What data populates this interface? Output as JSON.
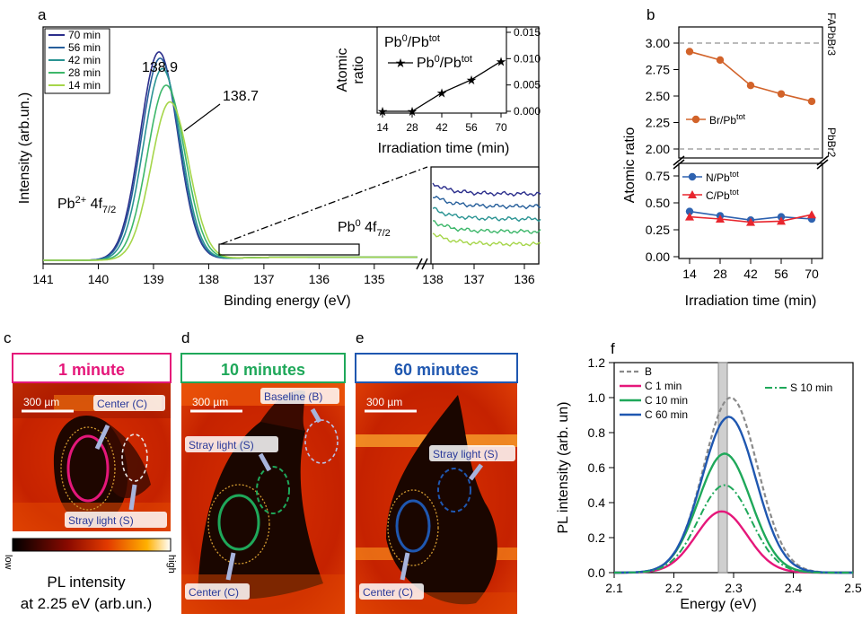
{
  "panel_labels": {
    "a": "a",
    "b": "b",
    "c": "c",
    "d": "d",
    "e": "e",
    "f": "f"
  },
  "colors": {
    "c70": "#2b2e8c",
    "c56": "#275f9b",
    "c42": "#2a9493",
    "c28": "#3db76a",
    "c14": "#a6d64a",
    "br": "#d2632a",
    "n": "#2e62b0",
    "cpb": "#e8262e",
    "B": "#8a8a8a",
    "C1": "#e5177a",
    "C10": "#1fa85a",
    "C60": "#1f57b0",
    "S10": "#1fa85a",
    "heat_dark": "#230800",
    "heat_mid": "#b02000",
    "heat_hot": "#ff6a10",
    "heat_bright": "#ffd24a"
  },
  "chart_data": [
    {
      "id": "a_main",
      "type": "line",
      "xlabel": "Binding energy (eV)",
      "ylabel": "Intensity (arb.un.)",
      "xlim": [
        141,
        134.2
      ],
      "x_ticks": [
        "141",
        "140",
        "139",
        "138",
        "137",
        "136",
        "135",
        "138"
      ],
      "legend": [
        "70 min",
        "56 min",
        "42 min",
        "28 min",
        "14 min"
      ],
      "series": [
        {
          "name": "70 min",
          "peak_center": 138.9,
          "peak_height": 1.0
        },
        {
          "name": "56 min",
          "peak_center": 138.88,
          "peak_height": 0.97
        },
        {
          "name": "42 min",
          "peak_center": 138.84,
          "peak_height": 0.92
        },
        {
          "name": "28 min",
          "peak_center": 138.77,
          "peak_height": 0.84
        },
        {
          "name": "14 min",
          "peak_center": 138.7,
          "peak_height": 0.76
        }
      ],
      "annotations": [
        "138.9",
        "138.7",
        "Pb2+ 4f7/2",
        "Pb0 4f7/2"
      ],
      "annotation_parts": {
        "pb2_base": "Pb",
        "pb2_sup": "2+",
        "pb2_rest": " 4f",
        "pb2_sub": "7/2",
        "pb0_base": "Pb",
        "pb0_sup": "0",
        "pb0_rest": " 4f",
        "pb0_sub": "7/2"
      },
      "zoom_x_ticks": [
        "137",
        "136"
      ]
    },
    {
      "id": "a_inset",
      "type": "line",
      "title": "Pb0/Pbtot",
      "xlabel": "Irradiation time (min)",
      "ylabel": "Atomic ratio",
      "ylabel_lines": [
        "Atomic",
        "ratio"
      ],
      "x": [
        14,
        28,
        42,
        56,
        70
      ],
      "values": [
        0.0,
        0.0,
        0.0035,
        0.006,
        0.0095
      ],
      "ylim": [
        0,
        0.015
      ],
      "y_ticks": [
        "0.000",
        "0.005",
        "0.010",
        "0.015"
      ],
      "legend": [
        "Pb0/Pbtot"
      ],
      "title_parts": {
        "base": "Pb",
        "sup": "0",
        "mid": "/Pb",
        "sup2": "tot"
      }
    },
    {
      "id": "b",
      "type": "line",
      "xlabel": "Irradiation time (min)",
      "ylabel": "Atomic ratio",
      "x": [
        14,
        28,
        42,
        56,
        70
      ],
      "series": [
        {
          "name": "Br/Pbtot",
          "values": [
            2.92,
            2.84,
            2.6,
            2.52,
            2.45
          ]
        },
        {
          "name": "N/Pbtot",
          "values": [
            0.42,
            0.38,
            0.34,
            0.37,
            0.35
          ]
        },
        {
          "name": "C/Pbtot",
          "values": [
            0.37,
            0.35,
            0.32,
            0.33,
            0.39
          ]
        }
      ],
      "legend_parts": {
        "br": "Br/Pb",
        "n": "N/Pb",
        "c": "C/Pb",
        "sup": "tot"
      },
      "upper_y_ticks": [
        "3.00",
        "2.75",
        "2.50",
        "2.25",
        "2.00"
      ],
      "lower_y_ticks": [
        "0.75",
        "0.50",
        "0.25",
        "0.00"
      ],
      "x_ticks": [
        "14",
        "28",
        "42",
        "56",
        "70"
      ],
      "reference_lines": {
        "top": "FAPbBr3",
        "bottom": "PbBr2"
      }
    },
    {
      "id": "f",
      "type": "line",
      "xlabel": "Energy (eV)",
      "ylabel": "PL intensity (arb. un)",
      "xlim": [
        2.1,
        2.5
      ],
      "ylim": [
        0,
        1.2
      ],
      "x_ticks": [
        "2.1",
        "2.2",
        "2.3",
        "2.4",
        "2.5"
      ],
      "y_ticks": [
        "0.0",
        "0.2",
        "0.4",
        "0.6",
        "0.8",
        "1.0",
        "1.2"
      ],
      "series": [
        {
          "name": "B",
          "center": 2.295,
          "amplitude": 1.0,
          "width": 0.045
        },
        {
          "name": "C 1 min",
          "center": 2.28,
          "amplitude": 0.35,
          "width": 0.043
        },
        {
          "name": "C 10 min",
          "center": 2.285,
          "amplitude": 0.68,
          "width": 0.044
        },
        {
          "name": "C 60 min",
          "center": 2.292,
          "amplitude": 0.89,
          "width": 0.045
        },
        {
          "name": "S 10 min",
          "center": 2.285,
          "amplitude": 0.5,
          "width": 0.044
        }
      ]
    }
  ],
  "maps": {
    "c": {
      "title": "1 minute",
      "scale": "300 µm",
      "labels": [
        "Center (C)",
        "Stray light (S)"
      ]
    },
    "d": {
      "title": "10 minutes",
      "scale": "300 µm",
      "labels": [
        "Baseline (B)",
        "Stray light (S)",
        "Center (C)"
      ]
    },
    "e": {
      "title": "60 minutes",
      "scale": "300 µm",
      "labels": [
        "Stray light (S)",
        "Center (C)"
      ]
    }
  },
  "colorbar": {
    "low": "low",
    "high": "high",
    "label_line1": "PL intensity",
    "label_line2": "at 2.25 eV (arb.un.)"
  }
}
